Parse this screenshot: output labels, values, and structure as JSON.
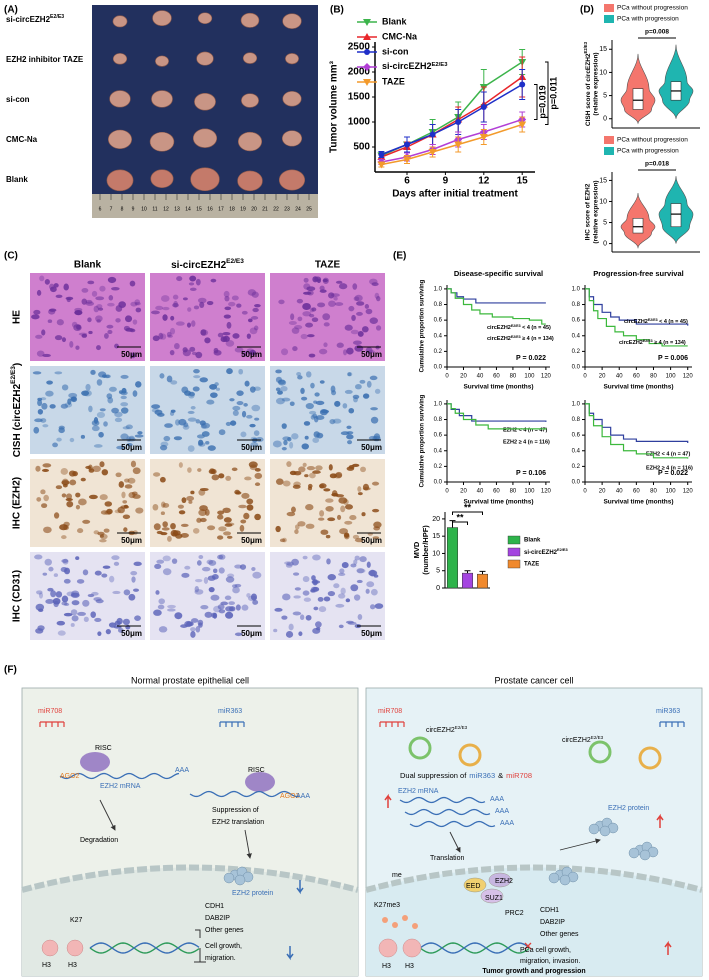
{
  "panel_labels": [
    "(A)",
    "(B)",
    "(C)",
    "(D)",
    "(E)",
    "(F)"
  ],
  "panel_a": {
    "rows": [
      {
        "text": "si-circEZH2",
        "sup": "E2/E3"
      },
      "EZH2 inhibitor TAZE",
      "si-con",
      "CMC-Na",
      "Blank"
    ],
    "ruler": [
      6,
      7,
      8,
      9,
      10,
      11,
      12,
      13,
      14,
      15,
      16,
      17,
      18,
      19,
      20,
      21,
      22,
      23,
      24,
      25
    ]
  },
  "panel_c": {
    "columns": [
      "Blank",
      {
        "text": "si-circEZH2",
        "sup": "E2/E3"
      },
      "TAZE"
    ],
    "rows": [
      "HE",
      {
        "text": "CISH (circEZH2",
        "sup": "E2/E3",
        "rest": ")"
      },
      "IHC (EZH2)",
      "IHC (CD31)"
    ],
    "scale_bar": "50μm"
  },
  "chart_data": [
    {
      "type": "line",
      "ylabel": "Tumor volume mm³",
      "xlabel": "Days after initial treatment",
      "x": [
        4,
        6,
        8,
        10,
        12,
        15
      ],
      "xlim": [
        3.5,
        16
      ],
      "xticks": [
        6,
        9,
        12,
        15
      ],
      "ylim": [
        0,
        2600
      ],
      "yticks": [
        500,
        1000,
        1500,
        2000,
        2500
      ],
      "series": [
        {
          "name": "Blank",
          "color": "#3cb44b",
          "values": [
            330,
            550,
            800,
            1100,
            1700,
            2200
          ],
          "errors": [
            60,
            150,
            250,
            300,
            350,
            250
          ]
        },
        {
          "name": "CMC-Na",
          "color": "#e8262b",
          "values": [
            300,
            500,
            750,
            1050,
            1350,
            1900
          ],
          "errors": [
            50,
            100,
            200,
            250,
            350,
            400
          ]
        },
        {
          "name": "si-con",
          "color": "#1f2fc8",
          "values": [
            350,
            550,
            750,
            1000,
            1300,
            1750
          ],
          "errors": [
            60,
            150,
            200,
            250,
            300,
            300
          ]
        },
        {
          "name": {
            "text": "si-circEZH2",
            "sup": "E2/E3"
          },
          "color": "#b23fd6",
          "values": [
            200,
            300,
            450,
            650,
            800,
            1050
          ],
          "errors": [
            50,
            80,
            100,
            150,
            150,
            150
          ]
        },
        {
          "name": "TAZE",
          "color": "#f39a2b",
          "values": [
            150,
            250,
            400,
            550,
            700,
            950
          ],
          "errors": [
            50,
            80,
            100,
            150,
            150,
            150
          ]
        }
      ],
      "annotations": [
        "p=0.019",
        "p=0.011"
      ]
    },
    {
      "type": "violin",
      "ylabel": {
        "text": "CISH score of circEZH2",
        "sup": "E2/E3"
      },
      "ylabel2": "(relative expression)",
      "ylim": [
        -2,
        17
      ],
      "yticks": [
        0,
        5,
        10,
        15
      ],
      "series": [
        {
          "name": "PCa without progression",
          "color": "#f4766d",
          "min": -1,
          "q1": 2,
          "median": 4,
          "q3": 6.5,
          "max": 14
        },
        {
          "name": "PCa with progression",
          "color": "#1fb5b0",
          "min": 0,
          "q1": 4,
          "median": 6,
          "q3": 8,
          "max": 16
        }
      ],
      "annotations": [
        "p=0.008"
      ]
    },
    {
      "type": "violin",
      "ylabel": "IHC score of EZH2",
      "ylabel2": "(relative expression)",
      "ylim": [
        -2,
        17
      ],
      "yticks": [
        0,
        5,
        10,
        15
      ],
      "series": [
        {
          "name": "PCa without progression",
          "color": "#f4766d",
          "min": -1,
          "q1": 2.5,
          "median": 4,
          "q3": 6,
          "max": 12
        },
        {
          "name": "PCa with progression",
          "color": "#1fb5b0",
          "min": 0,
          "q1": 4,
          "median": 7,
          "q3": 9.5,
          "max": 16
        }
      ],
      "annotations": [
        "p=0.018"
      ]
    },
    {
      "type": "km",
      "title": "Disease-specific survival",
      "ylabel": "Cumulative proportion surviving",
      "xlabel": "Survival time (months)",
      "xlim": [
        0,
        125
      ],
      "xticks": [
        0,
        20,
        40,
        60,
        80,
        100,
        120
      ],
      "ylim": [
        0,
        1.05
      ],
      "yticks": [
        {
          "value": 0,
          "label": "0.0"
        },
        0.2,
        0.4,
        0.6,
        0.8,
        {
          "value": 1,
          "label": "1.0"
        }
      ],
      "series": [
        {
          "name": {
            "text": "circEZH2",
            "sup": "E2/E3",
            "rest": " < 4 (n = 45)"
          },
          "color": "#2f3f9e",
          "x": [
            0,
            5,
            12,
            20,
            35,
            120
          ],
          "values": [
            1,
            0.95,
            0.9,
            0.87,
            0.82,
            0.82
          ]
        },
        {
          "name": {
            "text": "circEZH2",
            "sup": "E2/E3",
            "rest": " ≥ 4 (n = 134)"
          },
          "color": "#3cb83c",
          "x": [
            0,
            5,
            10,
            20,
            30,
            40,
            55,
            80,
            100,
            115,
            120
          ],
          "values": [
            1,
            0.95,
            0.88,
            0.8,
            0.73,
            0.68,
            0.64,
            0.62,
            0.6,
            0.55,
            0.55
          ]
        }
      ],
      "annotations": [
        "P = 0.022"
      ]
    },
    {
      "type": "km",
      "title": "Progression-free survival",
      "xlabel": "Survival time (months)",
      "xlim": [
        0,
        125
      ],
      "xticks": [
        0,
        20,
        40,
        60,
        80,
        100,
        120
      ],
      "ylim": [
        0,
        1.05
      ],
      "yticks": [
        {
          "value": 0,
          "label": "0.0"
        },
        0.2,
        0.4,
        0.6,
        0.8,
        {
          "value": 1,
          "label": "1.0"
        }
      ],
      "series": [
        {
          "name": {
            "text": "circEZH2",
            "sup": "E2/E3",
            "rest": " < 4 (n = 45)"
          },
          "color": "#2f3f9e",
          "x": [
            0,
            5,
            10,
            20,
            30,
            40,
            60,
            120
          ],
          "values": [
            1,
            0.9,
            0.8,
            0.7,
            0.64,
            0.6,
            0.55,
            0.53
          ]
        },
        {
          "name": {
            "text": "circEZH2",
            "sup": "E2/E3",
            "rest": " ≥ 4 (n = 134)"
          },
          "color": "#3cb83c",
          "x": [
            0,
            5,
            10,
            15,
            25,
            35,
            45,
            60,
            75,
            90,
            120
          ],
          "values": [
            1,
            0.85,
            0.72,
            0.62,
            0.52,
            0.45,
            0.4,
            0.35,
            0.3,
            0.27,
            0.27
          ]
        }
      ],
      "annotations": [
        "P = 0.006"
      ]
    },
    {
      "type": "km",
      "ylabel": "Cumulative proportion surviving",
      "xlabel": "Survival time (months)",
      "xlim": [
        0,
        125
      ],
      "xticks": [
        0,
        20,
        40,
        60,
        80,
        100,
        120
      ],
      "ylim": [
        0,
        1.05
      ],
      "yticks": [
        {
          "value": 0,
          "label": "0.0"
        },
        0.2,
        0.4,
        0.6,
        0.8,
        {
          "value": 1,
          "label": "1.0"
        }
      ],
      "series": [
        {
          "name": "EZH2 < 4 (n = 47)",
          "color": "#2f3f9e",
          "x": [
            0,
            5,
            15,
            30,
            120
          ],
          "values": [
            1,
            0.93,
            0.85,
            0.78,
            0.77
          ]
        },
        {
          "name": "EZH2 ≥ 4 (n = 116)",
          "color": "#3cb83c",
          "x": [
            0,
            5,
            10,
            20,
            35,
            50,
            120
          ],
          "values": [
            1,
            0.94,
            0.88,
            0.8,
            0.73,
            0.68,
            0.67
          ]
        }
      ],
      "annotations": [
        "P = 0.106"
      ]
    },
    {
      "type": "km",
      "xlabel": "Survival time (months)",
      "xlim": [
        0,
        125
      ],
      "xticks": [
        0,
        20,
        40,
        60,
        80,
        100,
        120
      ],
      "ylim": [
        0,
        1.05
      ],
      "yticks": [
        {
          "value": 0,
          "label": "0.0"
        },
        0.2,
        0.4,
        0.6,
        0.8,
        {
          "value": 1,
          "label": "1.0"
        }
      ],
      "series": [
        {
          "name": "EZH2 < 4 (n = 47)",
          "color": "#2f3f9e",
          "x": [
            0,
            5,
            10,
            20,
            30,
            45,
            60,
            120
          ],
          "values": [
            1,
            0.88,
            0.8,
            0.7,
            0.6,
            0.55,
            0.52,
            0.5
          ]
        },
        {
          "name": "EZH2 ≥ 4 (n = 116)",
          "color": "#3cb83c",
          "x": [
            0,
            5,
            10,
            20,
            30,
            45,
            60,
            80,
            120
          ],
          "values": [
            1,
            0.85,
            0.72,
            0.58,
            0.48,
            0.4,
            0.36,
            0.31,
            0.3
          ]
        }
      ],
      "annotations": [
        "P = 0.022"
      ]
    },
    {
      "type": "bar",
      "ylabel": "MVD",
      "ylabel2": "(number/HPF)",
      "ylim": [
        0,
        22
      ],
      "yticks": [
        0,
        5,
        10,
        15,
        20
      ],
      "series": [
        {
          "name": "Blank",
          "color": "#2db34a",
          "values": [
            17.5
          ],
          "errors": [
            2
          ]
        },
        {
          "name": {
            "text": "si-circEZH2",
            "sup": "E2/E3"
          },
          "color": "#a445e0",
          "values": [
            4.3
          ],
          "errors": [
            0.7
          ]
        },
        {
          "name": "TAZE",
          "color": "#f0892d",
          "values": [
            4
          ],
          "errors": [
            0.8
          ]
        }
      ],
      "annotations": [
        "**",
        "**"
      ]
    }
  ],
  "panel_f": {
    "left": {
      "title": "Normal prostate epithelial cell",
      "labels": [
        "miR708",
        "miR363",
        "RISC",
        "RISC",
        "AGO2",
        "AGO2",
        "EZH2 mRNA",
        "AAA",
        "AAA",
        "Suppression of",
        "EZH2 translation",
        "Degradation",
        "EZH2 protein",
        "K27",
        "H3",
        "H3",
        "CDH1",
        "DAB2IP",
        "Other genes",
        "Cell growth,",
        "migration."
      ]
    },
    "right": {
      "title": "Prostate cancer cell",
      "labels": [
        "miR708",
        "miR363",
        {
          "text": "circEZH2",
          "sup": "E2/E3"
        },
        {
          "text": "circEZH2",
          "sup": "E2/E3"
        },
        "EZH2 mRNA",
        "AAA",
        "AAA",
        "AAA",
        "EZH2 protein",
        "Translation",
        "me",
        "EED",
        "EZH2",
        "SUZ1",
        "PRC2",
        "K27me3",
        "H3",
        "H3",
        "CDH1",
        "DAB2IP",
        "Other genes",
        "PCa cell growth,",
        "migration, invasion.",
        "Tumor growth and progression"
      ],
      "dual": [
        "Dual suppression of",
        "miR363",
        "&",
        "miR708"
      ]
    }
  }
}
